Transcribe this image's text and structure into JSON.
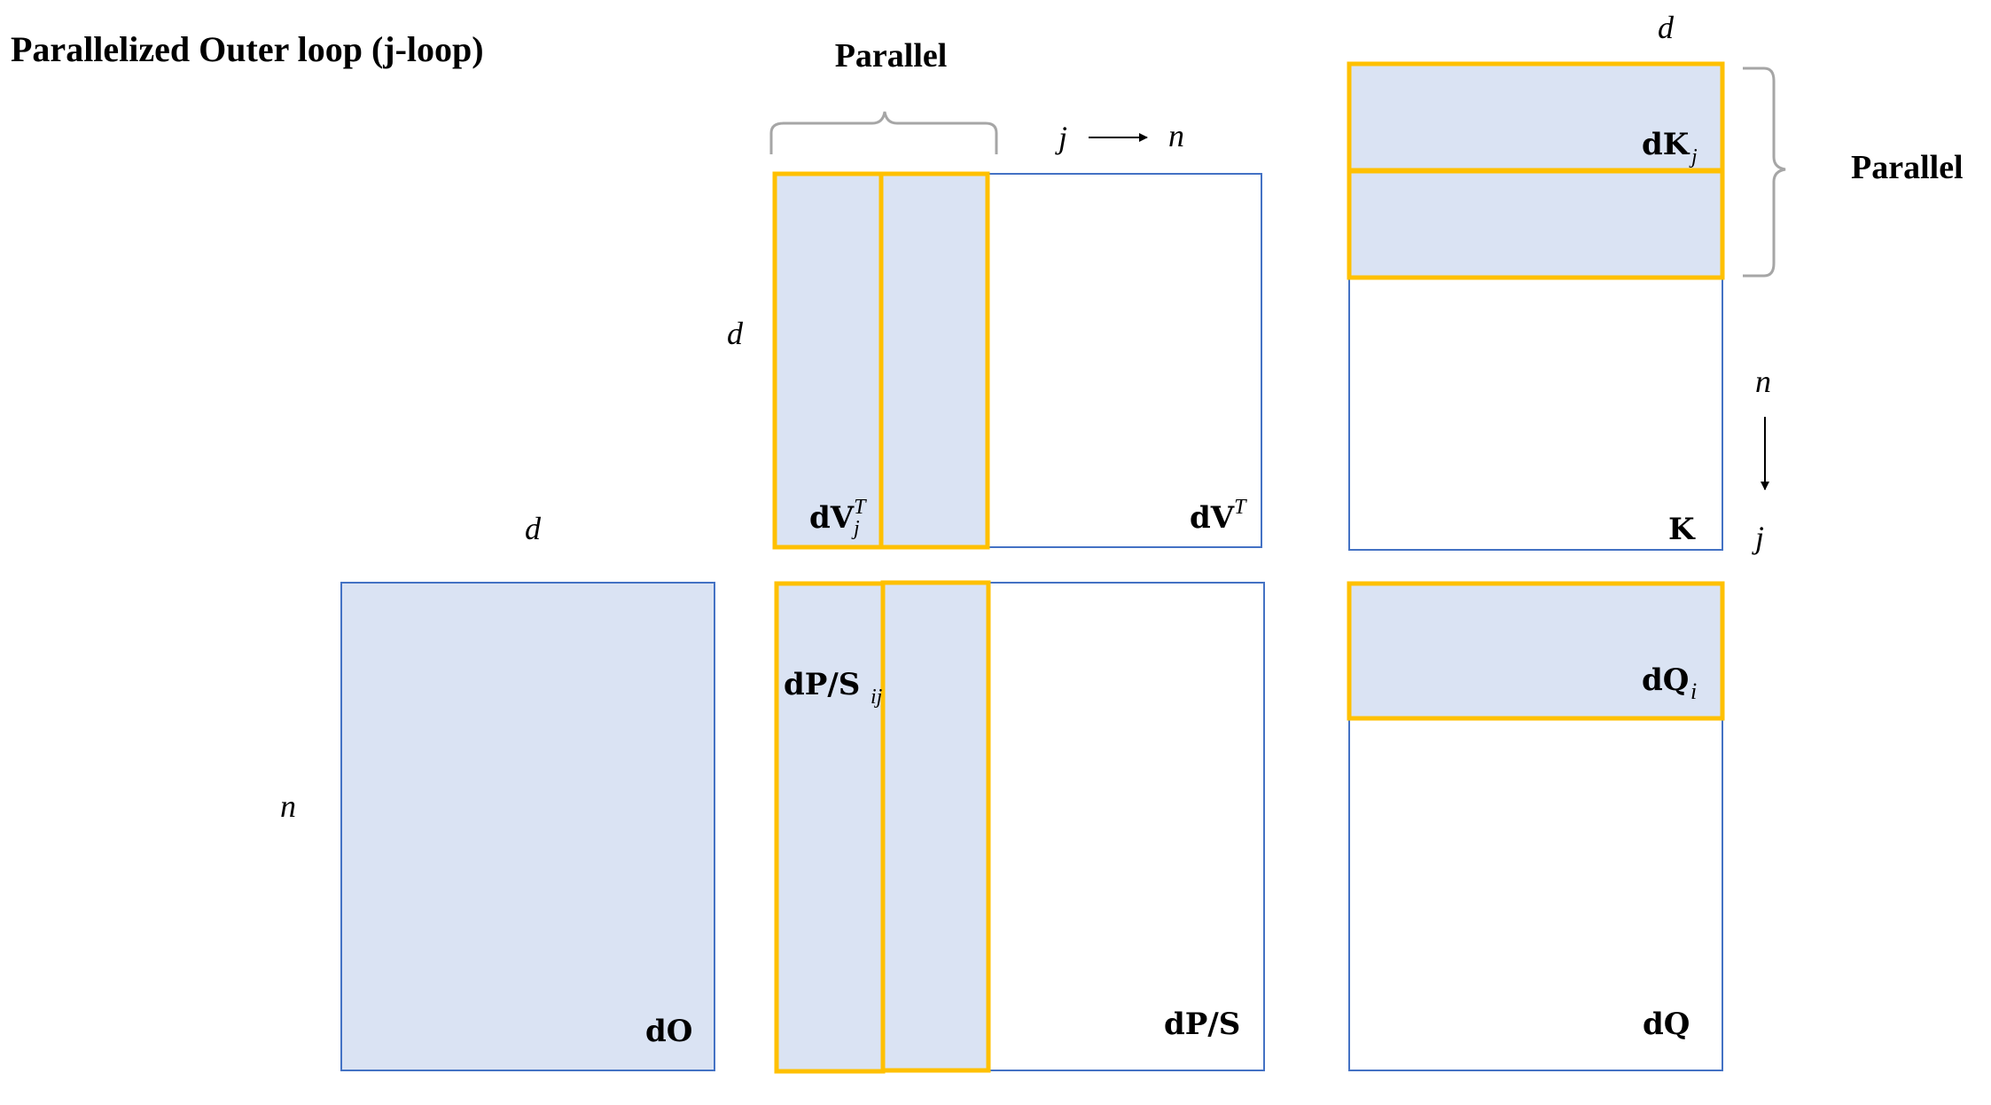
{
  "title": "Parallelized Outer loop (j-loop)",
  "parallel_labels": {
    "top": "Parallel",
    "right": "Parallel"
  },
  "dims": {
    "d_top_right": "d",
    "d_left_top": "d",
    "d_left_bottom": "d",
    "n_left": "n",
    "n_right": "n",
    "j_right": "j",
    "j_top": "j",
    "n_top": "n"
  },
  "matrices": {
    "dVT": {
      "base": "dV",
      "sup": "T"
    },
    "dVjT": {
      "base": "dV",
      "sub": "j",
      "sup": "T"
    },
    "K": {
      "base": "K"
    },
    "dKj": {
      "base": "dK",
      "sub": "j"
    },
    "dO": {
      "base": "dO"
    },
    "dPS": {
      "base": "dP/S"
    },
    "dPSij": {
      "base": "dP/S",
      "sub": "ij"
    },
    "dQ": {
      "base": "dQ"
    },
    "dQi": {
      "base": "dQ",
      "sub": "i"
    }
  },
  "colors": {
    "matrix_outline": "#4472c4",
    "block_fill": "#dae3f3",
    "block_outline": "#ffc000",
    "brace": "#a6a6a6",
    "text": "#000000"
  }
}
